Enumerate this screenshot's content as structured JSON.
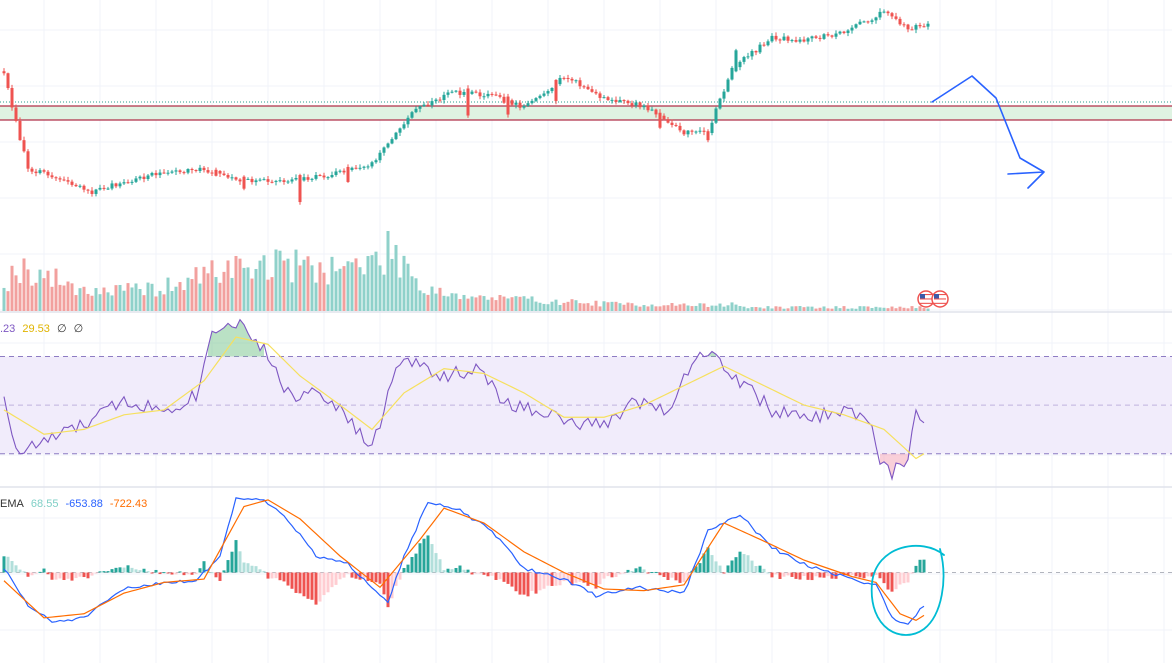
{
  "colors": {
    "up": "#26a69a",
    "down": "#ef5350",
    "vol_up": "#8fd1ca",
    "vol_down": "#f2a09e",
    "grid": "#f0f3fa",
    "zone_fill": "#dff3e2",
    "zone_line": "#b0304a",
    "price_line": "#2a9d8f",
    "rsi_line": "#7e57c2",
    "rsi_ma": "#f6e05e",
    "rsi_band": "#f1ecfb",
    "rsi_dash": "#8e7cc3",
    "macd_line": "#2962ff",
    "signal_line": "#ff6d00",
    "hist_up_strong": "#26a69a",
    "hist_up_weak": "#b2dfdb",
    "hist_down_strong": "#ef5350",
    "hist_down_weak": "#ffcdd2",
    "arrow": "#2962ff",
    "circle": "#00bcd4",
    "legend_rsi_value": "#7e57c2",
    "legend_rsi_ma": "#e0b400",
    "legend_macd_hist": "#7fcfc6",
    "legend_macd": "#2962ff",
    "legend_signal": "#ff6d00",
    "legend_na": "#333333"
  },
  "legends": {
    "rsi": {
      "value": ".23",
      "ma": "29.53",
      "na1": "∅",
      "na2": "∅"
    },
    "macd": {
      "label": "EMA",
      "hist": "68.55",
      "macd": "-653.88",
      "signal": "-722.43"
    }
  },
  "chart_data": [
    {
      "type": "candlestick",
      "pane": "price",
      "grid": true,
      "x_count": 232,
      "ylim": [
        0,
        100
      ],
      "anchors": [
        [
          0,
          70
        ],
        [
          2,
          52
        ],
        [
          6,
          22
        ],
        [
          14,
          16
        ],
        [
          22,
          10
        ],
        [
          30,
          15
        ],
        [
          40,
          20
        ],
        [
          50,
          21
        ],
        [
          60,
          16
        ],
        [
          70,
          15
        ],
        [
          80,
          18
        ],
        [
          92,
          24
        ],
        [
          102,
          50
        ],
        [
          112,
          60
        ],
        [
          122,
          58
        ],
        [
          130,
          52
        ],
        [
          140,
          68
        ],
        [
          150,
          57
        ],
        [
          160,
          53
        ],
        [
          170,
          40
        ],
        [
          176,
          40
        ],
        [
          182,
          72
        ],
        [
          192,
          87
        ],
        [
          200,
          86
        ],
        [
          210,
          90
        ],
        [
          220,
          100
        ],
        [
          226,
          92
        ],
        [
          234,
          94
        ]
      ],
      "events": [
        [
          53,
          -4
        ],
        [
          60,
          -8
        ],
        [
          74,
          -18
        ],
        [
          86,
          -10
        ],
        [
          116,
          -18
        ],
        [
          126,
          -12
        ],
        [
          138,
          -14
        ],
        [
          164,
          -10
        ],
        [
          176,
          -6
        ],
        [
          183,
          14
        ]
      ],
      "noise": 1.2,
      "support_zone": [
        46,
        53
      ],
      "last_price_level": 55,
      "volume": {
        "ylim": [
          0,
          100
        ],
        "anchors": [
          [
            0,
            40
          ],
          [
            4,
            60
          ],
          [
            12,
            45
          ],
          [
            20,
            30
          ],
          [
            30,
            28
          ],
          [
            40,
            32
          ],
          [
            48,
            45
          ],
          [
            52,
            55
          ],
          [
            60,
            62
          ],
          [
            70,
            65
          ],
          [
            80,
            60
          ],
          [
            92,
            65
          ],
          [
            97,
            85
          ],
          [
            100,
            70
          ],
          [
            104,
            35
          ],
          [
            115,
            20
          ],
          [
            130,
            16
          ],
          [
            150,
            10
          ],
          [
            175,
            8
          ],
          [
            183,
            9
          ],
          [
            186,
            5
          ],
          [
            232,
            5
          ]
        ]
      },
      "forecast_arrow": [
        [
          232,
          55
        ],
        [
          242,
          68
        ],
        [
          248,
          57
        ],
        [
          254,
          27
        ],
        [
          260,
          20
        ],
        [
          256,
          12
        ],
        [
          260,
          20
        ],
        [
          251,
          19
        ]
      ]
    },
    {
      "type": "line",
      "pane": "rsi",
      "ylim": [
        20,
        85
      ],
      "bands": [
        30,
        70
      ],
      "midline": 50,
      "series": [
        {
          "role": "rsi",
          "anchors": [
            [
              0,
              55
            ],
            [
              3,
              30
            ],
            [
              10,
              35
            ],
            [
              20,
              42
            ],
            [
              30,
              52
            ],
            [
              40,
              48
            ],
            [
              48,
              54
            ],
            [
              52,
              80
            ],
            [
              56,
              85
            ],
            [
              60,
              83
            ],
            [
              66,
              70
            ],
            [
              72,
              52
            ],
            [
              78,
              58
            ],
            [
              84,
              48
            ],
            [
              92,
              32
            ],
            [
              98,
              65
            ],
            [
              102,
              68
            ],
            [
              110,
              62
            ],
            [
              118,
              65
            ],
            [
              126,
              50
            ],
            [
              134,
              48
            ],
            [
              142,
              42
            ],
            [
              150,
              42
            ],
            [
              158,
              52
            ],
            [
              166,
              48
            ],
            [
              172,
              68
            ],
            [
              176,
              72
            ],
            [
              184,
              60
            ],
            [
              192,
              48
            ],
            [
              200,
              44
            ],
            [
              210,
              48
            ],
            [
              216,
              44
            ],
            [
              219,
              28
            ],
            [
              222,
              22
            ],
            [
              226,
              28
            ],
            [
              228,
              50
            ],
            [
              230,
              40
            ]
          ]
        },
        {
          "role": "rsi-ma",
          "anchors": [
            [
              0,
              48
            ],
            [
              10,
              38
            ],
            [
              20,
              40
            ],
            [
              30,
              46
            ],
            [
              40,
              48
            ],
            [
              50,
              60
            ],
            [
              58,
              78
            ],
            [
              66,
              75
            ],
            [
              74,
              62
            ],
            [
              84,
              50
            ],
            [
              92,
              40
            ],
            [
              100,
              55
            ],
            [
              110,
              65
            ],
            [
              120,
              63
            ],
            [
              130,
              55
            ],
            [
              140,
              45
            ],
            [
              150,
              45
            ],
            [
              160,
              50
            ],
            [
              170,
              58
            ],
            [
              180,
              66
            ],
            [
              190,
              58
            ],
            [
              200,
              50
            ],
            [
              210,
              46
            ],
            [
              220,
              40
            ],
            [
              228,
              28
            ],
            [
              230,
              30
            ]
          ]
        }
      ]
    },
    {
      "type": "line",
      "pane": "macd",
      "ylim": [
        -100,
        100
      ],
      "zero_line": 0,
      "series": [
        {
          "role": "macd",
          "anchors": [
            [
              0,
              5
            ],
            [
              6,
              -40
            ],
            [
              12,
              -60
            ],
            [
              20,
              -55
            ],
            [
              30,
              -20
            ],
            [
              40,
              -12
            ],
            [
              48,
              -10
            ],
            [
              54,
              20
            ],
            [
              58,
              90
            ],
            [
              64,
              90
            ],
            [
              70,
              70
            ],
            [
              78,
              20
            ],
            [
              86,
              10
            ],
            [
              96,
              -35
            ],
            [
              100,
              20
            ],
            [
              106,
              85
            ],
            [
              114,
              75
            ],
            [
              122,
              50
            ],
            [
              130,
              5
            ],
            [
              140,
              -8
            ],
            [
              148,
              -28
            ],
            [
              158,
              -18
            ],
            [
              170,
              -25
            ],
            [
              176,
              50
            ],
            [
              184,
              70
            ],
            [
              192,
              30
            ],
            [
              200,
              10
            ],
            [
              212,
              -8
            ],
            [
              218,
              -15
            ],
            [
              222,
              -55
            ],
            [
              226,
              -62
            ],
            [
              230,
              -40
            ]
          ]
        },
        {
          "role": "signal",
          "anchors": [
            [
              0,
              -10
            ],
            [
              10,
              -55
            ],
            [
              20,
              -50
            ],
            [
              30,
              -25
            ],
            [
              40,
              -12
            ],
            [
              50,
              -8
            ],
            [
              60,
              80
            ],
            [
              66,
              88
            ],
            [
              74,
              65
            ],
            [
              84,
              20
            ],
            [
              94,
              -18
            ],
            [
              104,
              40
            ],
            [
              110,
              78
            ],
            [
              120,
              60
            ],
            [
              130,
              25
            ],
            [
              140,
              0
            ],
            [
              150,
              -20
            ],
            [
              160,
              -22
            ],
            [
              170,
              -15
            ],
            [
              180,
              60
            ],
            [
              190,
              38
            ],
            [
              200,
              15
            ],
            [
              212,
              -5
            ],
            [
              218,
              -12
            ],
            [
              224,
              -50
            ],
            [
              228,
              -58
            ],
            [
              230,
              -52
            ]
          ]
        },
        {
          "role": "histogram",
          "derived_from": [
            "macd",
            "signal"
          ]
        }
      ],
      "annotation": "circle"
    }
  ]
}
